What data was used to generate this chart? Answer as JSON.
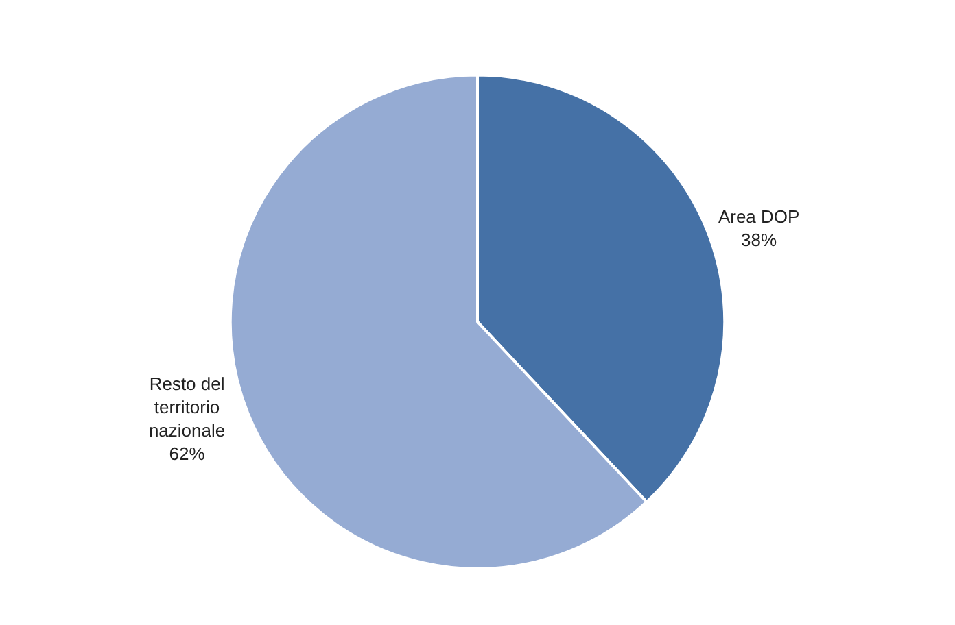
{
  "chart_data": {
    "type": "pie",
    "categories": [
      "Area DOP",
      "Resto del territorio nazionale"
    ],
    "values": [
      38,
      62
    ],
    "colors": [
      "#4571a6",
      "#95abd3"
    ],
    "value_labels": [
      "38%",
      "62%"
    ],
    "legend": false
  }
}
